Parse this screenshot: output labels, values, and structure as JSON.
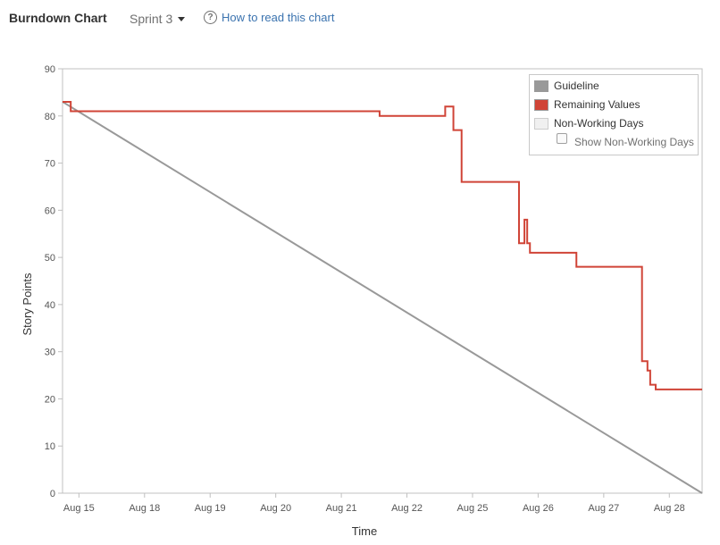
{
  "header": {
    "title": "Burndown Chart",
    "sprint_label": "Sprint 3",
    "help_label": "How to read this chart",
    "help_icon": "?"
  },
  "legend": {
    "guideline": "Guideline",
    "remaining": "Remaining Values",
    "non_working": "Non-Working Days",
    "show_non_working": "Show Non-Working Days",
    "show_non_working_checked": false
  },
  "colors": {
    "guideline": "#999999",
    "remaining": "#d04437",
    "non_working": "#f0f0f0",
    "axis": "#c0c0c0",
    "link": "#3b73af"
  },
  "chart_data": {
    "type": "line",
    "xlabel": "Time",
    "ylabel": "Story Points",
    "ylim": [
      0,
      90
    ],
    "yticks": [
      0,
      10,
      20,
      30,
      40,
      50,
      60,
      70,
      80,
      90
    ],
    "xlim": [
      "Aug 14 18:00",
      "Aug 28 12:00"
    ],
    "xticks": [
      {
        "label": "Aug 15",
        "x": "Aug 15"
      },
      {
        "label": "Aug 18",
        "x": "Aug 18"
      },
      {
        "label": "Aug 19",
        "x": "Aug 19"
      },
      {
        "label": "Aug 20",
        "x": "Aug 20"
      },
      {
        "label": "Aug 21",
        "x": "Aug 21"
      },
      {
        "label": "Aug 22",
        "x": "Aug 22"
      },
      {
        "label": "Aug 25",
        "x": "Aug 25"
      },
      {
        "label": "Aug 26",
        "x": "Aug 26"
      },
      {
        "label": "Aug 27",
        "x": "Aug 27"
      },
      {
        "label": "Aug 28",
        "x": "Aug 28"
      }
    ],
    "grid": false,
    "legend_position": "top-right",
    "series": [
      {
        "name": "Guideline",
        "step": false,
        "points": [
          {
            "x": "Aug 14 18:00",
            "y": 83
          },
          {
            "x": "Aug 28 12:00",
            "y": 0
          }
        ]
      },
      {
        "name": "Remaining Values",
        "step": true,
        "points": [
          {
            "x": "Aug 14 18:00",
            "y": 83
          },
          {
            "x": "Aug 14 21:00",
            "y": 81
          },
          {
            "x": "Aug 21 14:00",
            "y": 80
          },
          {
            "x": "Aug 22 14:00",
            "y": 82
          },
          {
            "x": "Aug 22 17:00",
            "y": 77
          },
          {
            "x": "Aug 22 20:00",
            "y": 66
          },
          {
            "x": "Aug 25 17:00",
            "y": 53
          },
          {
            "x": "Aug 25 19:00",
            "y": 58
          },
          {
            "x": "Aug 25 20:00",
            "y": 53
          },
          {
            "x": "Aug 25 21:00",
            "y": 51
          },
          {
            "x": "Aug 26 14:00",
            "y": 48
          },
          {
            "x": "Aug 27 14:00",
            "y": 28
          },
          {
            "x": "Aug 27 16:00",
            "y": 26
          },
          {
            "x": "Aug 27 17:00",
            "y": 23
          },
          {
            "x": "Aug 27 19:00",
            "y": 22
          },
          {
            "x": "Aug 28 12:00",
            "y": 22
          }
        ]
      }
    ]
  }
}
